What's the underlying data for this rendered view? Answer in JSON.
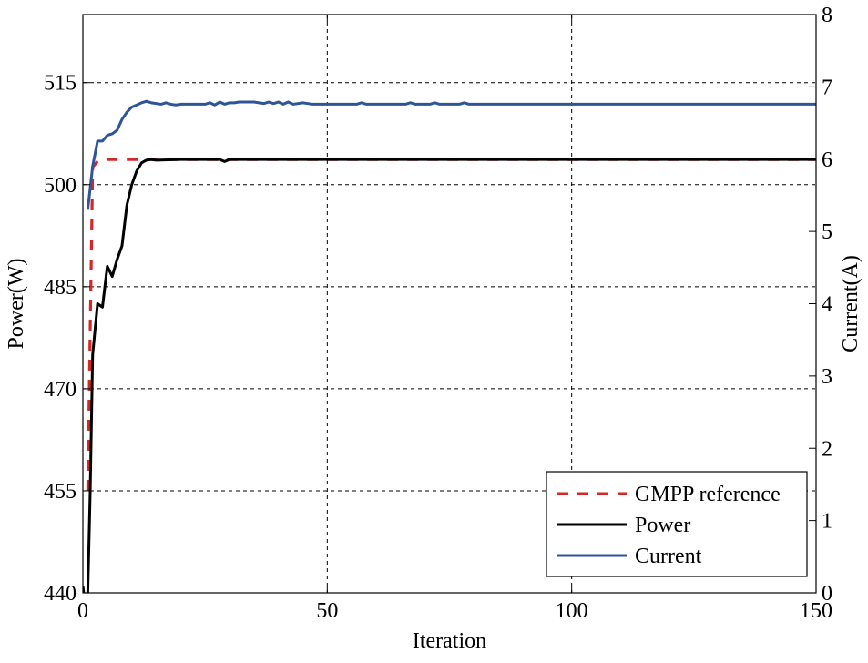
{
  "chart_data": {
    "type": "line",
    "title": "",
    "xlabel": "Iteration",
    "ylabel": "Power(W)",
    "y2label": "Current(A)",
    "xlim": [
      0,
      150
    ],
    "ylim": [
      440,
      525
    ],
    "y2lim": [
      0,
      8
    ],
    "xticks": [
      0,
      50,
      100,
      150
    ],
    "yticks": [
      440,
      455,
      470,
      485,
      500,
      515
    ],
    "y2ticks": [
      0,
      1,
      2,
      3,
      4,
      5,
      6,
      7,
      8
    ],
    "grid": true,
    "legend_position": "bottom-right",
    "series": [
      {
        "name": "GMPP reference",
        "axis": "left",
        "color": "#d62728",
        "style": "dashed",
        "x": [
          1,
          2,
          3,
          4,
          5,
          8,
          10,
          12,
          150
        ],
        "y": [
          455,
          502.6,
          503.4,
          503.6,
          503.7,
          503.7,
          503.7,
          503.7,
          503.7
        ]
      },
      {
        "name": "Power",
        "axis": "left",
        "color": "#000000",
        "style": "solid",
        "x": [
          0,
          0.5,
          1,
          1.5,
          2,
          3,
          4,
          5,
          6,
          7,
          8,
          9,
          10,
          11,
          12,
          13,
          14,
          15,
          20,
          28,
          29,
          30,
          150
        ],
        "y": [
          441,
          438,
          440,
          455,
          475,
          482.5,
          482,
          488,
          486.5,
          489,
          491,
          497,
          500,
          502,
          503.2,
          503.6,
          503.7,
          503.6,
          503.7,
          503.7,
          503.4,
          503.7,
          503.7
        ]
      },
      {
        "name": "Current",
        "axis": "right",
        "color": "#2e5597",
        "style": "solid",
        "x": [
          1,
          2,
          3,
          4,
          5,
          6,
          7,
          8,
          9,
          10,
          11,
          12,
          13,
          14,
          15,
          16,
          17,
          18,
          19,
          20,
          25,
          26,
          27,
          28,
          29,
          30,
          31,
          32,
          35,
          37,
          38,
          39,
          40,
          41,
          42,
          43,
          45,
          47,
          48,
          50,
          56,
          57,
          58,
          60,
          66,
          67,
          68,
          71,
          72,
          73,
          74,
          77,
          78,
          79,
          80,
          150
        ],
        "y": [
          5.3,
          5.9,
          6.25,
          6.25,
          6.33,
          6.35,
          6.4,
          6.55,
          6.65,
          6.72,
          6.75,
          6.78,
          6.8,
          6.78,
          6.77,
          6.76,
          6.78,
          6.76,
          6.75,
          6.76,
          6.76,
          6.78,
          6.75,
          6.79,
          6.76,
          6.78,
          6.78,
          6.79,
          6.79,
          6.77,
          6.79,
          6.77,
          6.79,
          6.76,
          6.79,
          6.76,
          6.78,
          6.76,
          6.76,
          6.76,
          6.76,
          6.78,
          6.76,
          6.76,
          6.76,
          6.78,
          6.76,
          6.76,
          6.78,
          6.76,
          6.76,
          6.76,
          6.78,
          6.76,
          6.76,
          6.76
        ]
      }
    ]
  }
}
